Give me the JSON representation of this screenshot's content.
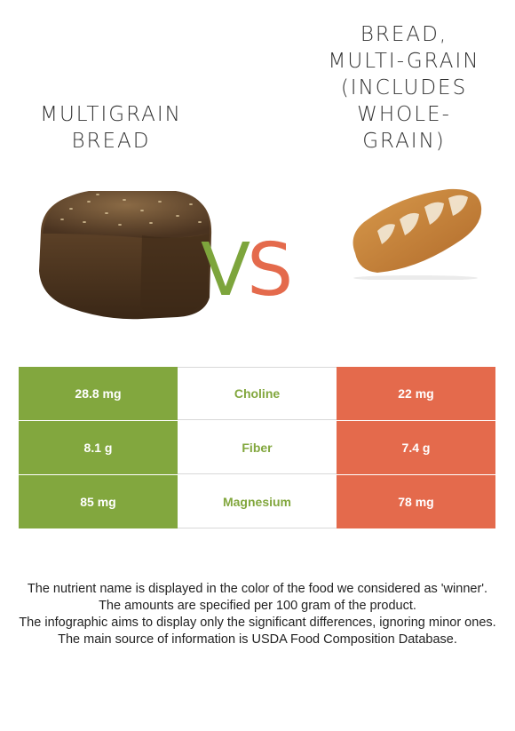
{
  "food_left": {
    "name": "Multigrain\nbread",
    "color": "#82a73e"
  },
  "food_right": {
    "name": "Bread,\nmulti-grain\n(includes\nwhole-\ngrain)",
    "color": "#e46a4c"
  },
  "vs": {
    "v": "V",
    "s": "S"
  },
  "nutrients": [
    {
      "left": "28.8 mg",
      "name": "Choline",
      "right": "22 mg"
    },
    {
      "left": "8.1 g",
      "name": "Fiber",
      "right": "7.4 g"
    },
    {
      "left": "85 mg",
      "name": "Magnesium",
      "right": "78 mg"
    }
  ],
  "notes": [
    "The nutrient name is displayed in the color of the food we considered as 'winner'.",
    "The amounts are specified per 100 gram of the product.",
    "The infographic aims to display only the significant differences, ignoring minor ones.",
    "The main source of information is USDA Food Composition Database."
  ]
}
